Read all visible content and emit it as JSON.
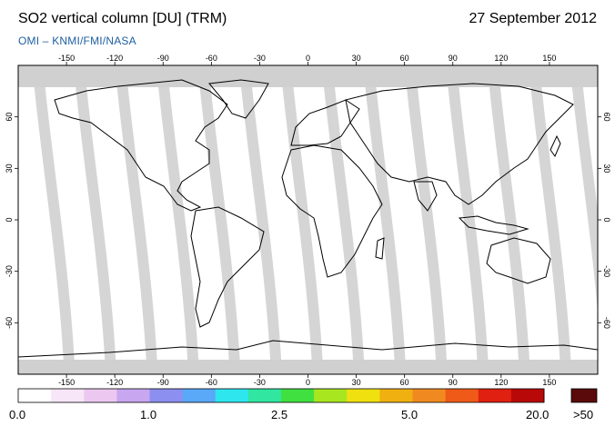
{
  "header": {
    "title": "SO2 vertical column [DU] (TRM)",
    "date": "27 September 2012",
    "credit": "OMI  –  KNMI/FMI/NASA"
  },
  "axes": {
    "lon_ticks_top": [
      "-150",
      "-120",
      "-90",
      "-60",
      "-30",
      "0",
      "30",
      "60",
      "90",
      "120",
      "150"
    ],
    "lon_ticks_bottom": [
      "-150",
      "-120",
      "-90",
      "-60",
      "-30",
      "0",
      "30",
      "60",
      "90",
      "120",
      "150"
    ],
    "lat_ticks_left": [
      "60",
      "30",
      "0",
      "-30",
      "-60"
    ],
    "lat_ticks_right": [
      "60",
      "30",
      "0",
      "-30",
      "-60"
    ]
  },
  "colorbar": {
    "labels": [
      "0.0",
      "1.0",
      "2.5",
      "5.0",
      "20.0"
    ],
    "overflow_label": ">50",
    "colors": [
      "#ffffff",
      "#f7e6f7",
      "#ecc8f0",
      "#c8a6f0",
      "#8c8ef0",
      "#5aa8f8",
      "#2ee6ee",
      "#30e6a0",
      "#40e040",
      "#a8e620",
      "#f0e010",
      "#f0b010",
      "#f08a20",
      "#f05a18",
      "#e02010",
      "#b80808"
    ],
    "overflow_color": "#5a0a0a"
  },
  "map": {
    "ocean_color": "#ffffff",
    "no_data_color": "#d0d0d0",
    "swath_dark_color": "#a8a8a8",
    "coastline_color": "#000000"
  }
}
